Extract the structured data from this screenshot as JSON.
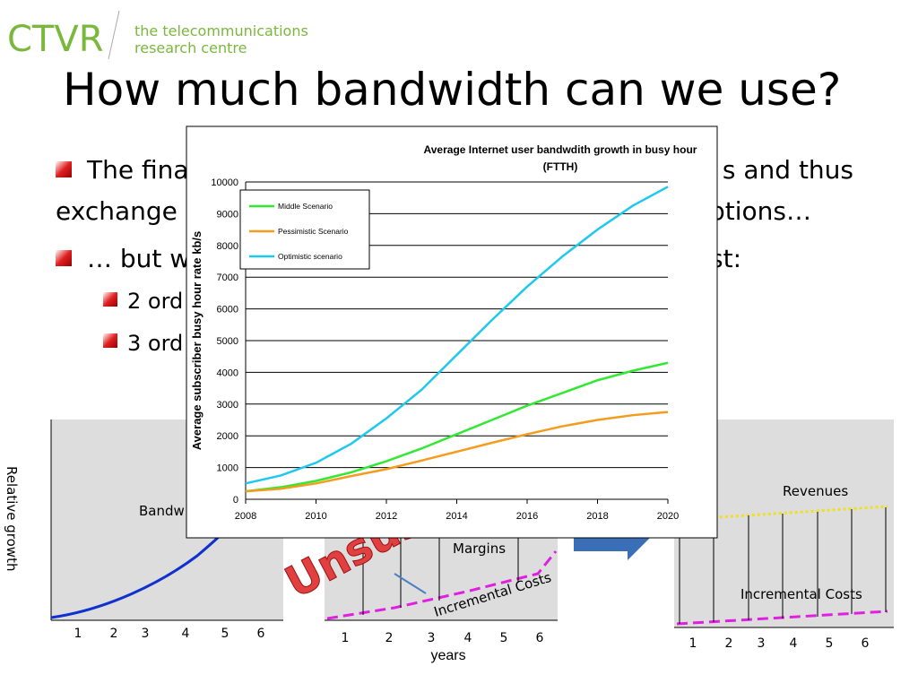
{
  "header": {
    "logo": "CTVR",
    "logo_sub": [
      "the telecommunications",
      "research centre"
    ],
    "title": "How much bandwidth can we use?"
  },
  "bullets": {
    "b1_left": "The fina",
    "b1_right": "s and thus",
    "b1b_left": "exchange",
    "b1b_right": "ptions…",
    "b2_left": "… but w",
    "b2_right": "st:",
    "sub1": "2 ord",
    "sub2": "3 ord"
  },
  "left_diagram": {
    "y_label": "Relative growth",
    "curve_label": "Bandw",
    "x_labels": [
      "1",
      "2",
      "3",
      "4",
      "5",
      "6"
    ]
  },
  "middle_diagram": {
    "stamp": "Unsus",
    "margins": "Margins",
    "costs": "Incremental Costs",
    "x_labels": [
      "1",
      "2",
      "3",
      "4",
      "5",
      "6"
    ],
    "x_title": "years"
  },
  "right_diagram": {
    "revenues": "Revenues",
    "costs": "Incremental Costs",
    "x_labels": [
      "1",
      "2",
      "3",
      "4",
      "5",
      "6"
    ]
  },
  "chart_data": {
    "type": "line",
    "title": [
      "Average Internet user bandwdith growth in busy hour",
      "(FTTH)"
    ],
    "y_label": "Average subscriber busy hour rate kb/s",
    "x": [
      2008,
      2009,
      2010,
      2011,
      2012,
      2013,
      2014,
      2015,
      2016,
      2017,
      2018,
      2019,
      2020
    ],
    "series": [
      {
        "name": "Middle Scenario",
        "color": "#33e833",
        "values": [
          250,
          380,
          580,
          850,
          1200,
          1600,
          2050,
          2500,
          2950,
          3350,
          3750,
          4050,
          4300
        ]
      },
      {
        "name": "Pessimistic Scenario",
        "color": "#f39c1e",
        "values": [
          250,
          330,
          500,
          730,
          950,
          1220,
          1500,
          1780,
          2050,
          2300,
          2500,
          2650,
          2750
        ]
      },
      {
        "name": "Optimistic scenario",
        "color": "#1ec8ef",
        "values": [
          500,
          750,
          1150,
          1750,
          2550,
          3450,
          4550,
          5650,
          6700,
          7650,
          8500,
          9250,
          9850
        ]
      }
    ],
    "xlim": [
      2008,
      2020
    ],
    "xticks": [
      2008,
      2010,
      2012,
      2014,
      2016,
      2018,
      2020
    ],
    "ylim": [
      0,
      10000
    ],
    "yticks": [
      0,
      1000,
      2000,
      3000,
      4000,
      5000,
      6000,
      7000,
      8000,
      9000,
      10000
    ],
    "grid": true,
    "legend": "upper-left"
  }
}
